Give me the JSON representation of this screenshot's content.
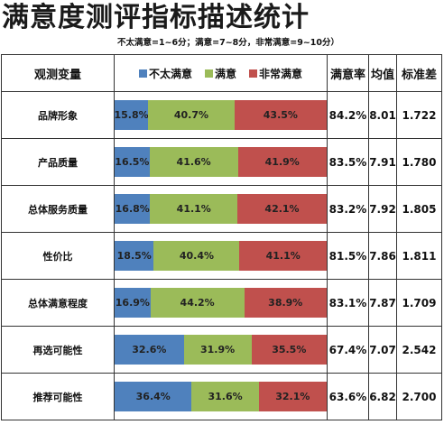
{
  "title": "满意度测评指标描述统计",
  "note": "不太满意=1~6分；满意=7~8分，非常满意=9~10分）",
  "headers": {
    "variable": "观测变量",
    "rate": "满意率",
    "mean": "均值",
    "std": "标准差"
  },
  "colors": {
    "not_satisfied": "#4f81bd",
    "satisfied": "#9bbb59",
    "very_satisfied": "#c0504d"
  },
  "chart_data": {
    "type": "bar",
    "stacked": true,
    "percent": true,
    "orientation": "horizontal",
    "categories": [
      "品牌形象",
      "产品质量",
      "总体服务质量",
      "性价比",
      "总体满意程度",
      "再选可能性",
      "推荐可能性"
    ],
    "series": [
      {
        "name": "不太满意",
        "values": [
          15.8,
          16.5,
          16.8,
          18.5,
          16.9,
          32.6,
          36.4
        ],
        "labels": [
          "15.8%",
          "16.5%",
          "16.8%",
          "18.5%",
          "16.9%",
          "32.6%",
          "36.4%"
        ],
        "color": "#4f81bd"
      },
      {
        "name": "满意",
        "values": [
          40.7,
          41.6,
          41.1,
          40.4,
          44.2,
          31.9,
          31.6
        ],
        "labels": [
          "40.7%",
          "41.6%",
          "41.1%",
          "40.4%",
          "44.2%",
          "31.9%",
          "31.6%"
        ],
        "color": "#9bbb59"
      },
      {
        "name": "非常满意",
        "values": [
          43.5,
          41.9,
          42.1,
          41.1,
          38.9,
          35.5,
          32.1
        ],
        "labels": [
          "43.5%",
          "41.9%",
          "42.1%",
          "41.1%",
          "38.9%",
          "35.5%",
          "32.1%"
        ],
        "color": "#c0504d"
      }
    ],
    "legend_position": "top",
    "grid": false
  },
  "rows": [
    {
      "label": "品牌形象",
      "rate": "84.2%",
      "mean": "8.01",
      "std": "1.722"
    },
    {
      "label": "产品质量",
      "rate": "83.5%",
      "mean": "7.91",
      "std": "1.780"
    },
    {
      "label": "总体服务质量",
      "rate": "83.2%",
      "mean": "7.92",
      "std": "1.805"
    },
    {
      "label": "性价比",
      "rate": "81.5%",
      "mean": "7.86",
      "std": "1.811"
    },
    {
      "label": "总体满意程度",
      "rate": "83.1%",
      "mean": "7.87",
      "std": "1.709"
    },
    {
      "label": "再选可能性",
      "rate": "67.4%",
      "mean": "7.07",
      "std": "2.542"
    },
    {
      "label": "推荐可能性",
      "rate": "63.6%",
      "mean": "6.82",
      "std": "2.700"
    }
  ]
}
